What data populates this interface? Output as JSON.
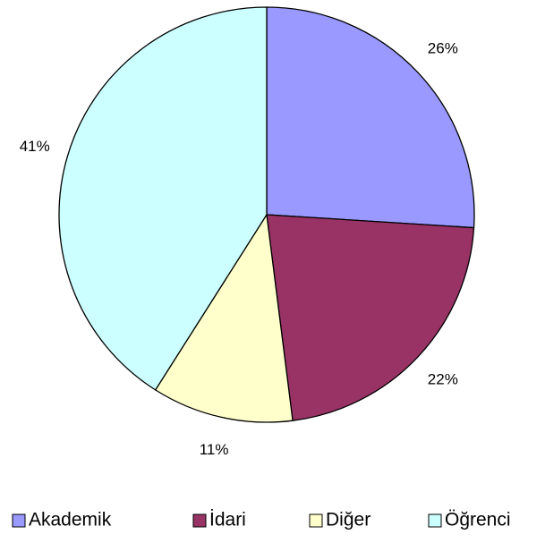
{
  "chart_data": {
    "type": "pie",
    "categories": [
      "Akademik",
      "İdari",
      "Diğer",
      "Öğrenci"
    ],
    "values": [
      26,
      22,
      11,
      41
    ],
    "value_labels": [
      "26%",
      "22%",
      "11%",
      "41%"
    ],
    "colors": [
      "#9999ff",
      "#993366",
      "#ffffcc",
      "#ccffff"
    ],
    "legend": "bottom"
  }
}
